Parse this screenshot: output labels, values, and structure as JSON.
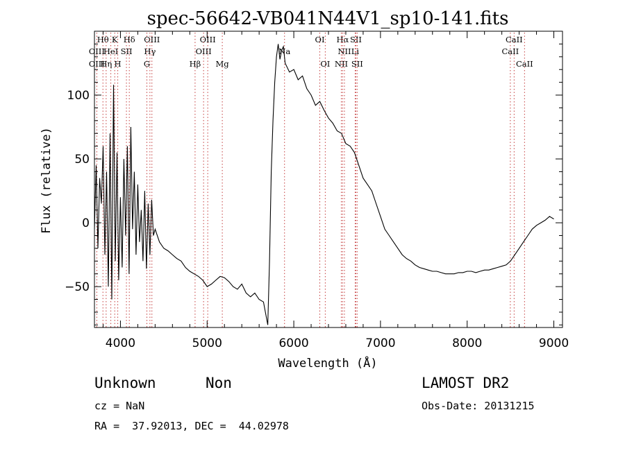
{
  "chart_data": {
    "type": "line",
    "title": "spec-56642-VB041N44V1_sp10-141.fits",
    "xlabel": "Wavelength (Å)",
    "ylabel": "Flux (relative)",
    "xlim": [
      3700,
      9100
    ],
    "ylim": [
      -82,
      150
    ],
    "xticks": [
      4000,
      5000,
      6000,
      7000,
      8000,
      9000
    ],
    "yticks": [
      -50,
      0,
      50,
      100
    ],
    "series": [
      {
        "x": [
          3700,
          3720,
          3740,
          3760,
          3780,
          3800,
          3820,
          3840,
          3860,
          3880,
          3900,
          3920,
          3940,
          3960,
          3980,
          4000,
          4020,
          4040,
          4060,
          4080,
          4100,
          4120,
          4140,
          4160,
          4180,
          4200,
          4220,
          4240,
          4260,
          4280,
          4300,
          4320,
          4340,
          4360,
          4380,
          4400,
          4450,
          4500,
          4550,
          4600,
          4650,
          4700,
          4750,
          4800,
          4850,
          4900,
          4950,
          5000,
          5050,
          5100,
          5150,
          5200,
          5250,
          5300,
          5350,
          5400,
          5450,
          5500,
          5550,
          5600,
          5650,
          5700,
          5720,
          5740,
          5760,
          5780,
          5800,
          5820,
          5840,
          5860,
          5880,
          5900,
          5950,
          6000,
          6050,
          6100,
          6150,
          6200,
          6250,
          6300,
          6350,
          6400,
          6450,
          6500,
          6550,
          6600,
          6650,
          6700,
          6750,
          6800,
          6850,
          6900,
          6950,
          7000,
          7050,
          7100,
          7150,
          7200,
          7250,
          7300,
          7350,
          7400,
          7450,
          7500,
          7550,
          7600,
          7650,
          7700,
          7750,
          7800,
          7850,
          7900,
          7950,
          8000,
          8050,
          8100,
          8150,
          8200,
          8250,
          8300,
          8350,
          8400,
          8450,
          8500,
          8550,
          8600,
          8650,
          8700,
          8750,
          8800,
          8850,
          8900,
          8950,
          9000
        ],
        "y": [
          -5,
          45,
          -20,
          35,
          15,
          60,
          -25,
          40,
          -50,
          70,
          -60,
          108,
          -30,
          55,
          -45,
          20,
          -35,
          50,
          -10,
          60,
          -40,
          75,
          -5,
          40,
          -25,
          30,
          -15,
          10,
          -30,
          25,
          -36,
          15,
          -25,
          18,
          -10,
          -5,
          -15,
          -20,
          -22,
          -25,
          -28,
          -30,
          -35,
          -38,
          -40,
          -42,
          -45,
          -50,
          -48,
          -45,
          -42,
          -43,
          -46,
          -50,
          -52,
          -48,
          -55,
          -58,
          -55,
          -60,
          -62,
          -80,
          -30,
          40,
          80,
          110,
          130,
          140,
          128,
          135,
          138,
          125,
          118,
          120,
          112,
          115,
          105,
          100,
          92,
          95,
          88,
          82,
          78,
          72,
          70,
          62,
          60,
          55,
          45,
          35,
          30,
          25,
          15,
          5,
          -5,
          -10,
          -15,
          -20,
          -25,
          -28,
          -30,
          -33,
          -35,
          -36,
          -37,
          -38,
          -38,
          -39,
          -40,
          -40,
          -40,
          -39,
          -39,
          -38,
          -38,
          -39,
          -38,
          -37,
          -37,
          -36,
          -35,
          -34,
          -33,
          -30,
          -25,
          -20,
          -15,
          -10,
          -5,
          -2,
          0,
          2,
          5,
          3
        ]
      }
    ],
    "line_markers": [
      {
        "label": "Hθ",
        "wave": 3798,
        "row": 1
      },
      {
        "label": "K",
        "wave": 3934,
        "row": 1
      },
      {
        "label": "Hδ",
        "wave": 4102,
        "row": 1
      },
      {
        "label": "OIII",
        "wave": 3727,
        "row": 2
      },
      {
        "label": "HeI",
        "wave": 3889,
        "row": 2
      },
      {
        "label": "SII",
        "wave": 4069,
        "row": 2
      },
      {
        "label": "OIII",
        "wave": 3727,
        "row": 3
      },
      {
        "label": "Hη",
        "wave": 3835,
        "row": 3
      },
      {
        "label": "H",
        "wave": 3969,
        "row": 3
      },
      {
        "label": "OIII",
        "wave": 4363,
        "row": 1
      },
      {
        "label": "Hγ",
        "wave": 4340,
        "row": 2
      },
      {
        "label": "G",
        "wave": 4305,
        "row": 3
      },
      {
        "label": "OIII",
        "wave": 5007,
        "row": 1
      },
      {
        "label": "OIII",
        "wave": 4959,
        "row": 2
      },
      {
        "label": "Hβ",
        "wave": 4861,
        "row": 3
      },
      {
        "label": "Mg",
        "wave": 5175,
        "row": 3
      },
      {
        "label": "Na",
        "wave": 5893,
        "row": 2
      },
      {
        "label": "OI",
        "wave": 6300,
        "row": 1
      },
      {
        "label": "OI",
        "wave": 6363,
        "row": 3
      },
      {
        "label": "Hα",
        "wave": 6563,
        "row": 1
      },
      {
        "label": "SII",
        "wave": 6716,
        "row": 1
      },
      {
        "label": "NII",
        "wave": 6584,
        "row": 2
      },
      {
        "label": "Li",
        "wave": 6708,
        "row": 2
      },
      {
        "label": "NII",
        "wave": 6548,
        "row": 3
      },
      {
        "label": "SII",
        "wave": 6731,
        "row": 3
      },
      {
        "label": "CaII",
        "wave": 8542,
        "row": 1
      },
      {
        "label": "CaII",
        "wave": 8498,
        "row": 2
      },
      {
        "label": "CaII",
        "wave": 8662,
        "row": 3
      }
    ]
  },
  "info": {
    "object_class": "Unknown",
    "subclass": "Non",
    "survey": "LAMOST DR2",
    "redshift": "cz = NaN",
    "obs_date": "Obs-Date: 20131215",
    "coords": "RA =  37.92013, DEC =  44.02978"
  }
}
